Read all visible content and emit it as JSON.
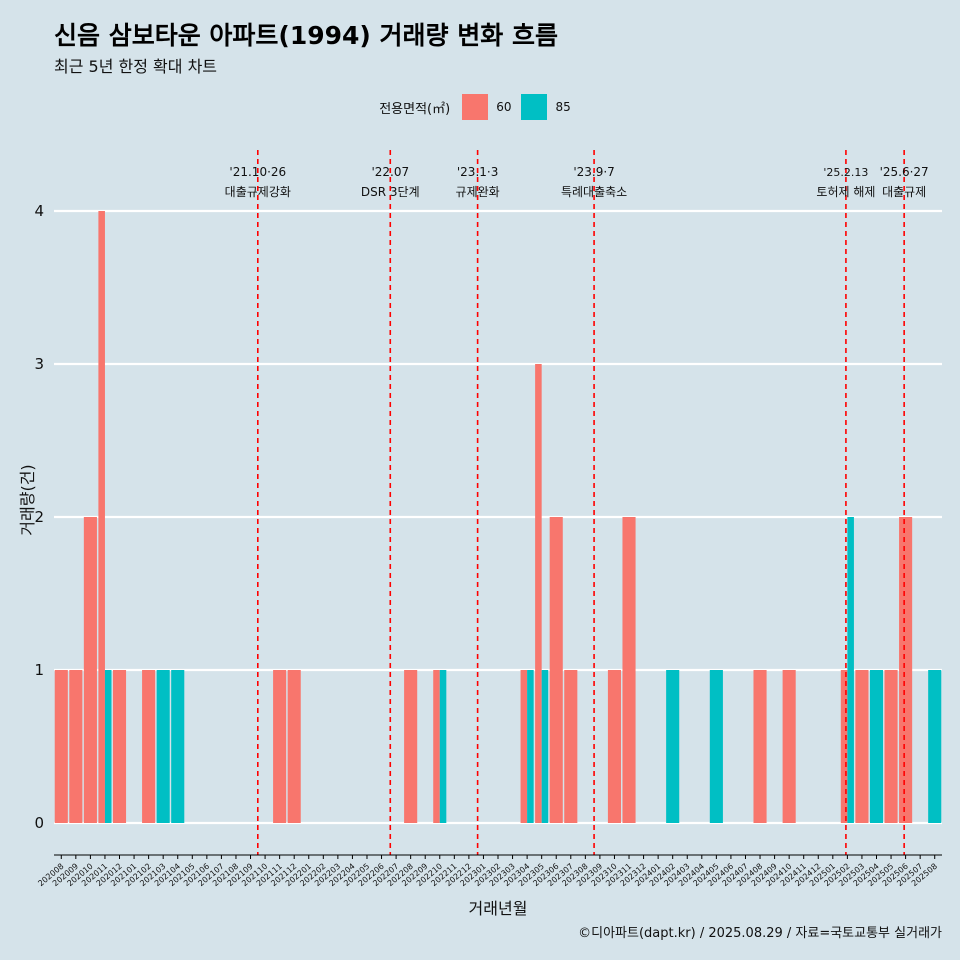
{
  "title": "신음 삼보타운 아파트(1994) 거래량 변화 흐름",
  "subtitle": "최근 5년 한정 확대 차트",
  "credit": "©디아파트(dapt.kr) / 2025.08.29 / 자료=국토교통부 실거래가",
  "colors": {
    "60": "#f8766d",
    "85": "#00bfc4",
    "vline": "#ff0000",
    "grid": "#ffffff"
  },
  "chart_data": {
    "type": "bar",
    "xlabel": "거래년월",
    "ylabel": "거래량(건)",
    "ylim": [
      -0.2,
      4.3
    ],
    "yticks": [
      0,
      1,
      2,
      3,
      4
    ],
    "legend": {
      "title": "전용면적(㎡)",
      "placement": "top",
      "entries": [
        "60",
        "85"
      ]
    },
    "categories": [
      "202008",
      "202009",
      "202010",
      "202011",
      "202012",
      "202101",
      "202102",
      "202103",
      "202104",
      "202105",
      "202106",
      "202107",
      "202108",
      "202109",
      "202110",
      "202111",
      "202112",
      "202201",
      "202202",
      "202203",
      "202204",
      "202205",
      "202206",
      "202207",
      "202208",
      "202209",
      "202210",
      "202211",
      "202212",
      "202301",
      "202302",
      "202303",
      "202304",
      "202305",
      "202306",
      "202307",
      "202308",
      "202309",
      "202310",
      "202311",
      "202312",
      "202401",
      "202402",
      "202403",
      "202404",
      "202405",
      "202406",
      "202407",
      "202408",
      "202409",
      "202410",
      "202411",
      "202412",
      "202501",
      "202502",
      "202503",
      "202504",
      "202505",
      "202506",
      "202507",
      "202508"
    ],
    "series": [
      {
        "name": "60",
        "values": [
          1,
          1,
          2,
          4,
          1,
          0,
          1,
          0,
          0,
          0,
          0,
          0,
          0,
          0,
          0,
          1,
          1,
          0,
          0,
          0,
          0,
          0,
          0,
          0,
          1,
          0,
          1,
          0,
          0,
          0,
          0,
          0,
          1,
          3,
          2,
          1,
          0,
          0,
          1,
          2,
          0,
          0,
          0,
          0,
          0,
          0,
          0,
          0,
          1,
          0,
          1,
          0,
          0,
          0,
          1,
          1,
          0,
          1,
          2,
          0,
          0
        ]
      },
      {
        "name": "85",
        "values": [
          0,
          0,
          0,
          1,
          0,
          0,
          0,
          1,
          1,
          0,
          0,
          0,
          0,
          0,
          0,
          0,
          0,
          0,
          0,
          0,
          0,
          0,
          0,
          0,
          0,
          0,
          1,
          0,
          0,
          0,
          0,
          0,
          1,
          1,
          0,
          0,
          0,
          0,
          0,
          0,
          0,
          0,
          1,
          0,
          0,
          1,
          0,
          0,
          0,
          0,
          0,
          0,
          0,
          0,
          2,
          0,
          1,
          0,
          0,
          0,
          1
        ]
      }
    ],
    "annotations": [
      {
        "pos": 14.0,
        "date": "'21.10·26",
        "label": "대출규제강화"
      },
      {
        "pos": 23.1,
        "date": "'22.07",
        "label": "DSR 3단계"
      },
      {
        "pos": 29.1,
        "date": "'23.1·3",
        "label": "규제완화"
      },
      {
        "pos": 37.1,
        "date": "'23.9·7",
        "label": "특례대출축소"
      },
      {
        "pos": 54.4,
        "date": "'25.2.13",
        "label": "토허제 해제"
      },
      {
        "pos": 58.4,
        "date": "'25.6·27",
        "label": "대출규제"
      }
    ]
  }
}
